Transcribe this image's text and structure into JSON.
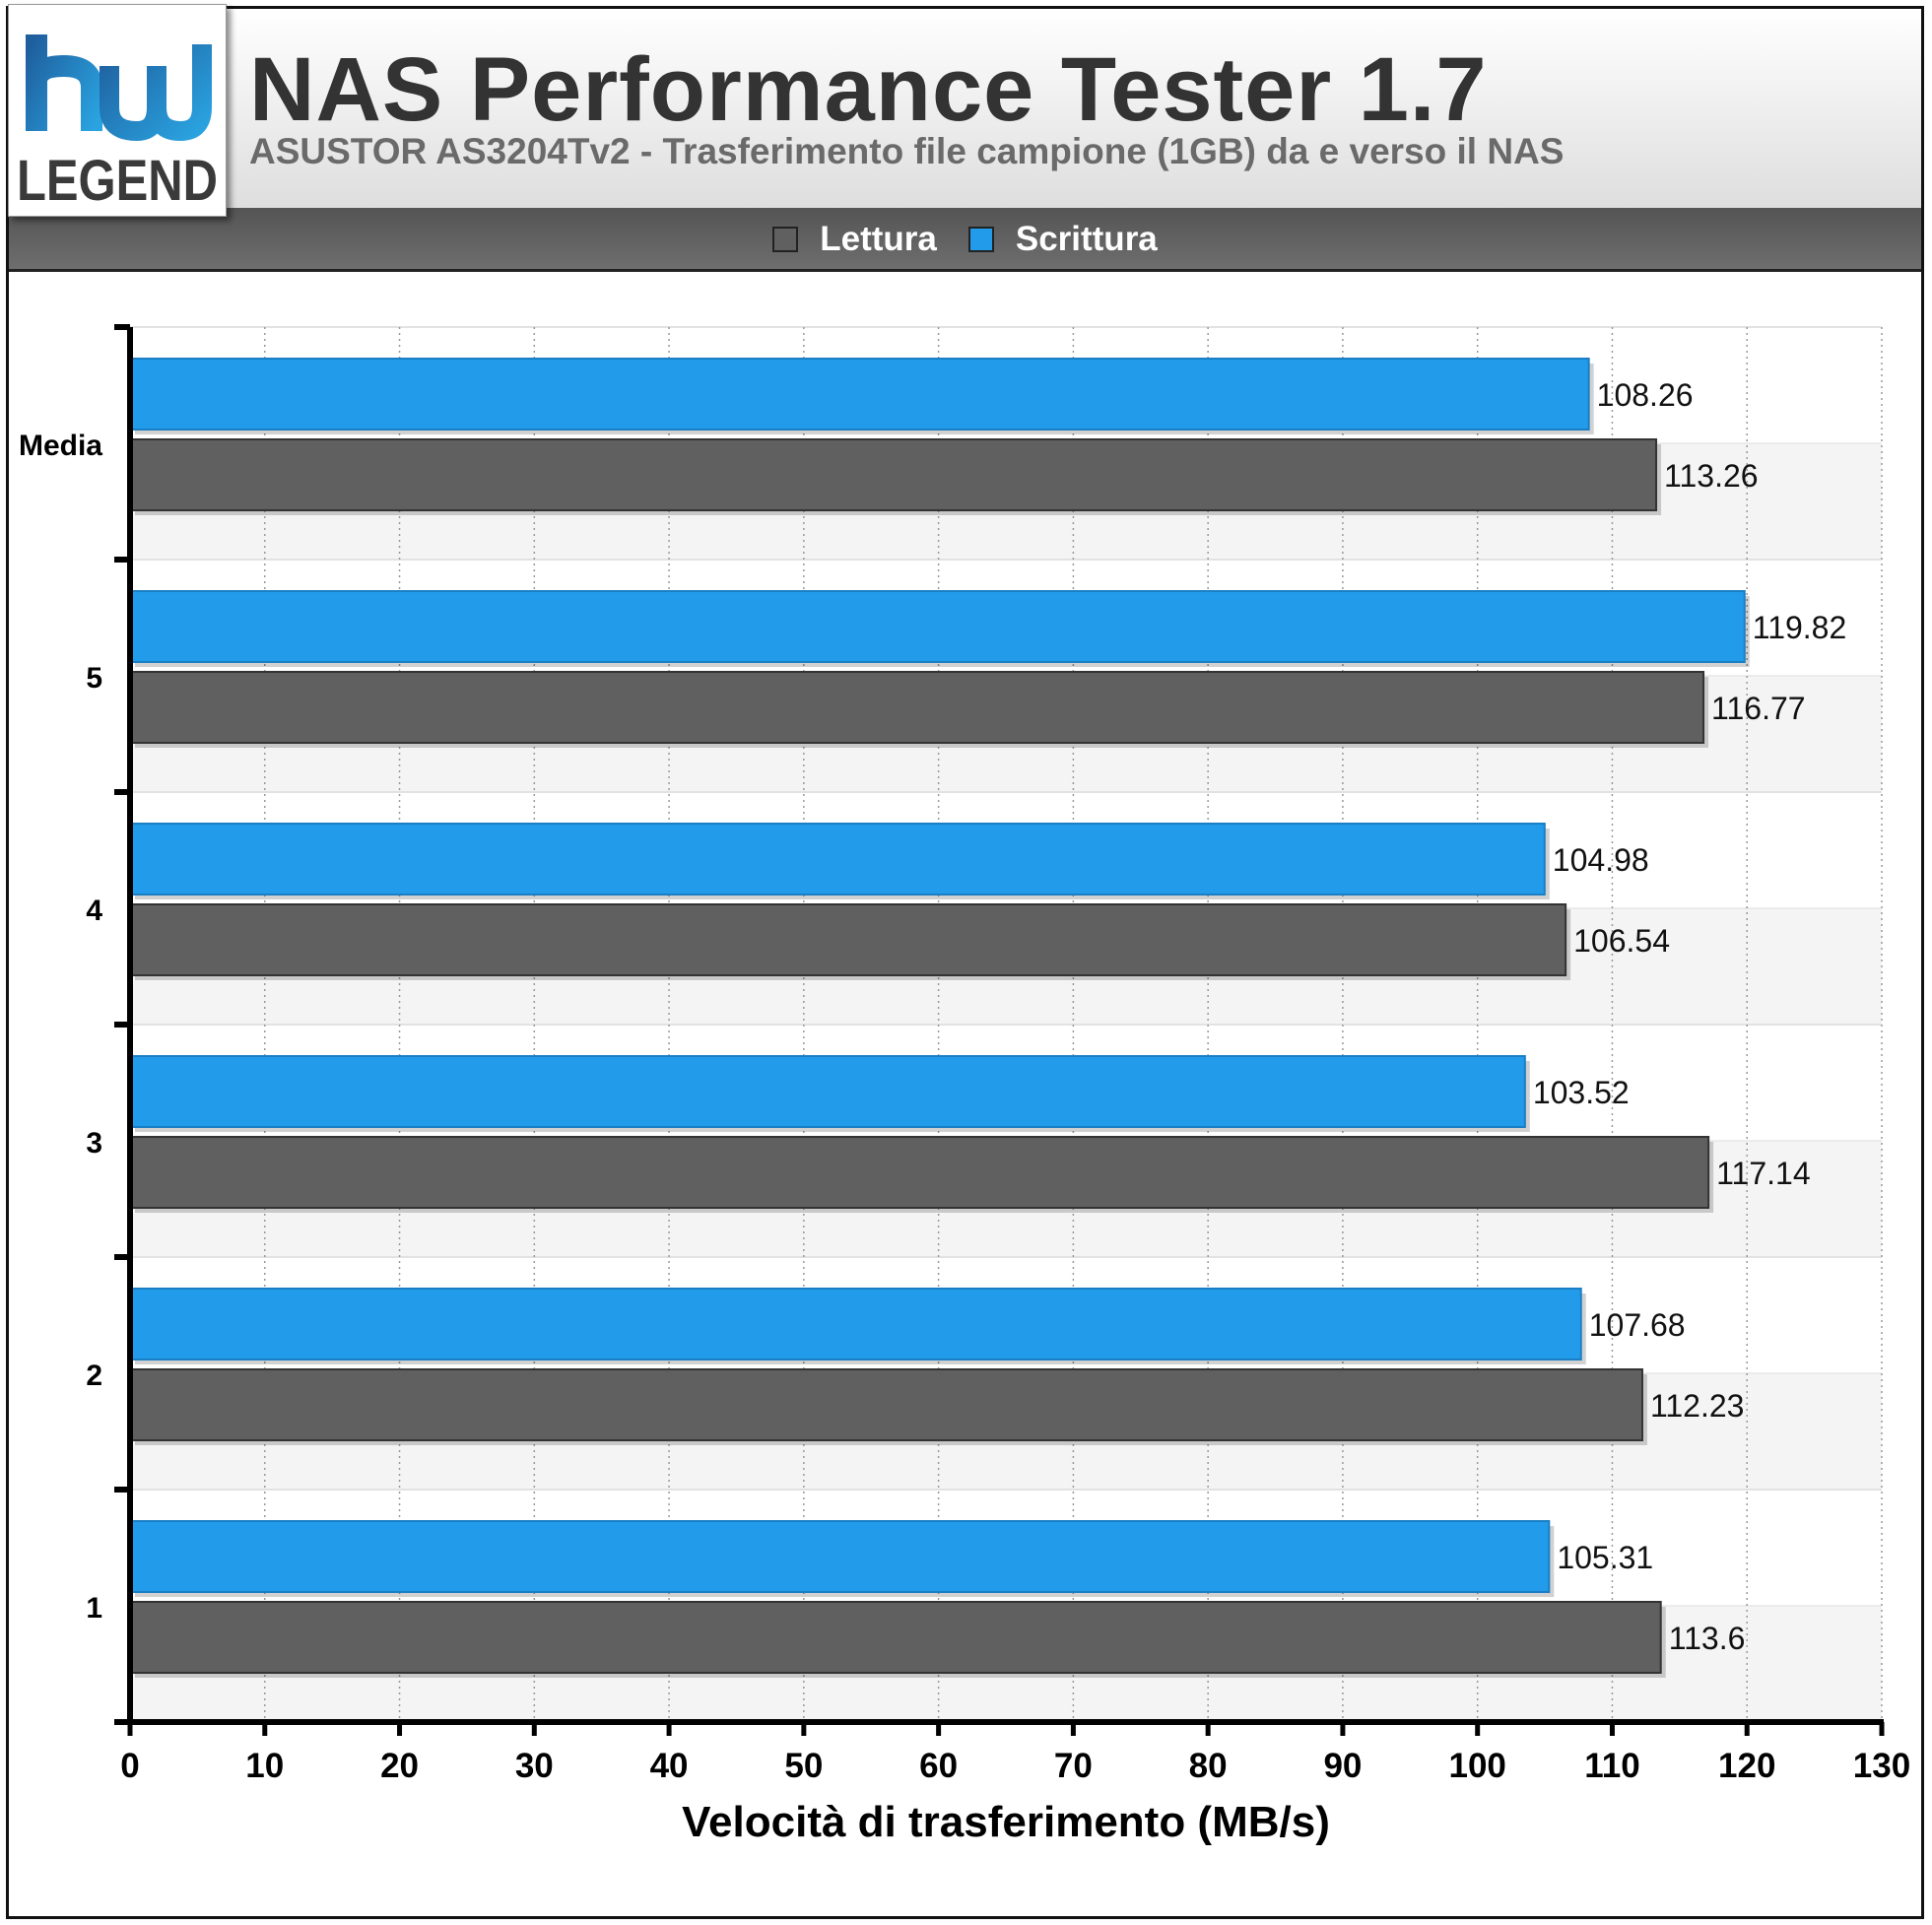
{
  "header": {
    "title": "NAS Performance Tester 1.7",
    "subtitle": "ASUSTOR AS3204Tv2 - Trasferimento file campione (1GB) da e verso il NAS"
  },
  "logo": {
    "top_text": "hw",
    "bottom_text": "LEGEND"
  },
  "legend": [
    {
      "label": "Lettura",
      "color": "#606060"
    },
    {
      "label": "Scrittura",
      "color": "#229bea"
    }
  ],
  "chart_data": {
    "type": "bar",
    "orientation": "horizontal",
    "categories": [
      "1",
      "2",
      "3",
      "4",
      "5",
      "Media"
    ],
    "series": [
      {
        "name": "Lettura",
        "color": "#606060",
        "values": [
          113.6,
          112.23,
          117.14,
          106.54,
          116.77,
          113.26
        ]
      },
      {
        "name": "Scrittura",
        "color": "#229bea",
        "values": [
          105.31,
          107.68,
          103.52,
          104.98,
          119.82,
          108.26
        ]
      }
    ],
    "xlabel": "Velocità di trasferimento (MB/s)",
    "ylabel": "",
    "xlim": [
      0,
      130
    ],
    "xticks": [
      0,
      10,
      20,
      30,
      40,
      50,
      60,
      70,
      80,
      90,
      100,
      110,
      120,
      130
    ],
    "grid": true,
    "legend_position": "top"
  }
}
